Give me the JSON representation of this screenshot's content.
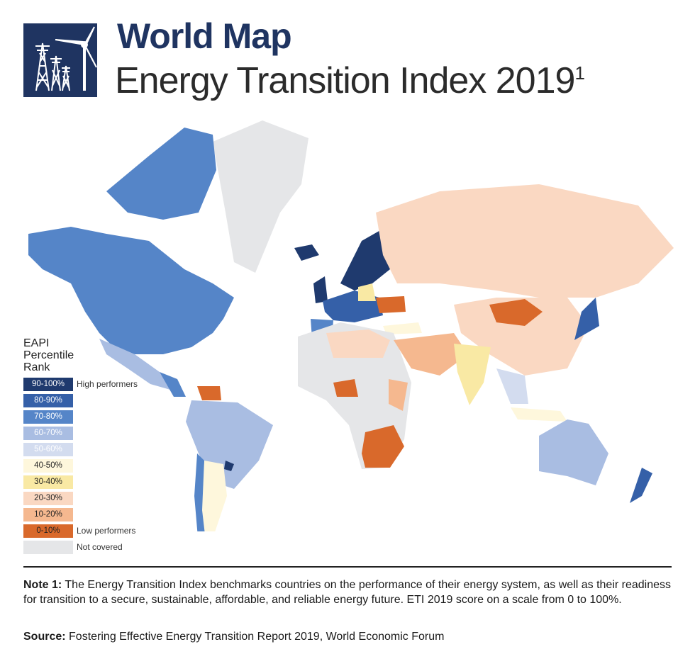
{
  "header": {
    "title": "World Map",
    "subtitle": "Energy Transition Index 2019",
    "superscript": "1",
    "logo_icon": "wind-turbine-power-pylons-icon"
  },
  "legend": {
    "title_lines": [
      "EAPI",
      "Percentile",
      "Rank"
    ],
    "items": [
      {
        "label": "90-100%",
        "color": "#1f3a6e",
        "text_color": "#ffffff",
        "note": "High performers"
      },
      {
        "label": "80-90%",
        "color": "#3560a8",
        "text_color": "#ffffff",
        "note": ""
      },
      {
        "label": "70-80%",
        "color": "#5585c8",
        "text_color": "#ffffff",
        "note": ""
      },
      {
        "label": "60-70%",
        "color": "#a9bde2",
        "text_color": "#ffffff",
        "note": ""
      },
      {
        "label": "50-60%",
        "color": "#d3dcef",
        "text_color": "#ffffff",
        "note": ""
      },
      {
        "label": "40-50%",
        "color": "#fef7dc",
        "text_color": "#222222",
        "note": ""
      },
      {
        "label": "30-40%",
        "color": "#f9e9a4",
        "text_color": "#222222",
        "note": ""
      },
      {
        "label": "20-30%",
        "color": "#fad8c2",
        "text_color": "#222222",
        "note": ""
      },
      {
        "label": "10-20%",
        "color": "#f5b88f",
        "text_color": "#222222",
        "note": ""
      },
      {
        "label": "0-10%",
        "color": "#d9692b",
        "text_color": "#222222",
        "note": "Low performers"
      },
      {
        "label": "",
        "color": "#e5e6e8",
        "text_color": "#222222",
        "note": "Not covered"
      }
    ]
  },
  "footer": {
    "note_label": "Note 1:",
    "note_text": " The Energy Transition Index benchmarks countries on the performance of their energy system, as well as their readiness for transition to a secure, sustainable, affordable, and reliable energy future. ETI 2019 score on a scale from 0 to 100%.",
    "source_label": "Source:",
    "source_text": " Fostering Effective Energy Transition Report 2019, World Economic Forum"
  }
}
